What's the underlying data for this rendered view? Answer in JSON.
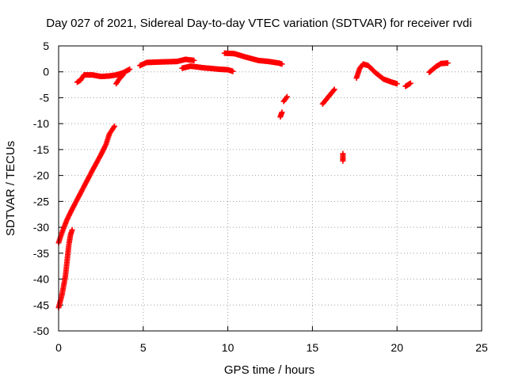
{
  "chart_data": {
    "type": "scatter",
    "title": "Day 027 of 2021, Sidereal Day-to-day VTEC variation (SDTVAR) for receiver rvdi",
    "xlabel": "GPS time / hours",
    "ylabel": "SDTVAR / TECUs",
    "xlim": [
      0,
      25
    ],
    "ylim": [
      -50,
      5
    ],
    "xticks": [
      0,
      5,
      10,
      15,
      20,
      25
    ],
    "yticks": [
      5,
      0,
      -5,
      -10,
      -15,
      -20,
      -25,
      -30,
      -35,
      -40,
      -45,
      -50
    ],
    "grid": true,
    "legend": "none",
    "marker": "+",
    "color": "#ff0000",
    "series": [
      {
        "segments": [
          [
            [
              0.0,
              -33
            ],
            [
              0.2,
              -31
            ],
            [
              0.5,
              -28.5
            ],
            [
              0.8,
              -26.5
            ],
            [
              1.2,
              -24
            ],
            [
              1.6,
              -21.5
            ],
            [
              2.0,
              -19
            ],
            [
              2.5,
              -16
            ],
            [
              2.8,
              -14
            ],
            [
              3.0,
              -12
            ],
            [
              3.3,
              -10.5
            ]
          ],
          [
            [
              0.0,
              -45.5
            ],
            [
              0.2,
              -43
            ],
            [
              0.4,
              -39.5
            ],
            [
              0.5,
              -36.5
            ],
            [
              0.6,
              -33.5
            ],
            [
              0.7,
              -31.5
            ],
            [
              0.8,
              -30.5
            ]
          ],
          [
            [
              1.1,
              -2
            ],
            [
              1.3,
              -1.6
            ],
            [
              1.5,
              -0.6
            ],
            [
              2.0,
              -0.6
            ],
            [
              2.5,
              -0.9
            ],
            [
              3.0,
              -0.8
            ],
            [
              3.4,
              -0.6
            ],
            [
              3.8,
              -0.2
            ],
            [
              4.2,
              0.5
            ]
          ],
          [
            [
              3.4,
              -2.3
            ],
            [
              3.6,
              -1.3
            ],
            [
              3.8,
              -0.6
            ]
          ],
          [
            [
              4.8,
              1.2
            ],
            [
              5.2,
              1.8
            ],
            [
              6.0,
              1.9
            ],
            [
              7.0,
              2.0
            ],
            [
              7.5,
              2.4
            ],
            [
              8.0,
              2.2
            ]
          ],
          [
            [
              7.3,
              0.7
            ],
            [
              7.8,
              1.1
            ],
            [
              8.5,
              0.8
            ],
            [
              9.5,
              0.5
            ],
            [
              10.0,
              0.4
            ],
            [
              10.3,
              0.1
            ]
          ],
          [
            [
              9.8,
              3.6
            ],
            [
              10.4,
              3.5
            ],
            [
              11.0,
              2.9
            ],
            [
              11.8,
              2.2
            ],
            [
              12.4,
              2.0
            ],
            [
              13.0,
              1.7
            ],
            [
              13.2,
              1.5
            ]
          ],
          [
            [
              13.1,
              -8.7
            ],
            [
              13.2,
              -7.8
            ]
          ],
          [
            [
              13.3,
              -5.7
            ],
            [
              13.5,
              -4.8
            ]
          ],
          [
            [
              15.6,
              -6.2
            ],
            [
              15.8,
              -5.4
            ],
            [
              16.0,
              -4.6
            ],
            [
              16.3,
              -3.4
            ]
          ],
          [
            [
              16.8,
              -15.8
            ],
            [
              16.8,
              -17.2
            ]
          ],
          [
            [
              17.6,
              -1.2
            ],
            [
              17.8,
              0.7
            ],
            [
              18.0,
              1.5
            ],
            [
              18.3,
              1.2
            ],
            [
              18.7,
              -0.1
            ],
            [
              19.2,
              -1.4
            ],
            [
              19.7,
              -2.0
            ],
            [
              20.0,
              -2.3
            ]
          ],
          [
            [
              20.5,
              -2.8
            ],
            [
              20.8,
              -2.2
            ]
          ],
          [
            [
              21.9,
              -0.1
            ],
            [
              22.3,
              1.0
            ],
            [
              22.6,
              1.6
            ],
            [
              23.0,
              1.7
            ]
          ]
        ]
      }
    ]
  }
}
